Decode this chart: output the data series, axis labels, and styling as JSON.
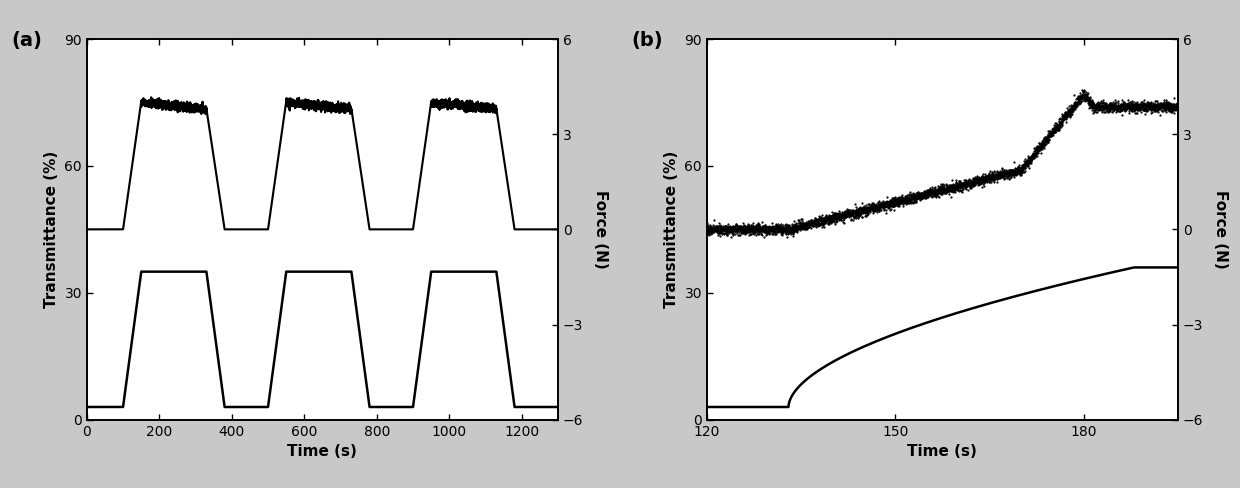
{
  "fig_width": 12.4,
  "fig_height": 4.88,
  "dpi": 100,
  "fig_bg": "#c8c8c8",
  "plot_bg": "#ffffff",
  "panel_a": {
    "label": "(a)",
    "xlabel": "Time (s)",
    "ylabel_left": "Transmittance (%)",
    "ylabel_right": "Force (N)",
    "xlim": [
      0,
      1300
    ],
    "ylim_left": [
      0,
      90
    ],
    "ylim_right": [
      -6,
      6
    ],
    "yticks_left": [
      0,
      30,
      60,
      90
    ],
    "yticks_right": [
      -6,
      -3,
      0,
      3,
      6
    ],
    "xticks": [
      0,
      200,
      400,
      600,
      800,
      1000,
      1200
    ],
    "trans_baseline": 45,
    "trans_high": 75,
    "force_baseline": 3,
    "force_high": 35,
    "cycles": [
      {
        "rise_start": 100,
        "rise_end": 150,
        "high_start": 150,
        "high_end": 330,
        "fall_start": 330,
        "fall_end": 380
      },
      {
        "rise_start": 500,
        "rise_end": 550,
        "high_start": 550,
        "high_end": 730,
        "fall_start": 730,
        "fall_end": 780
      },
      {
        "rise_start": 900,
        "rise_end": 950,
        "high_start": 950,
        "high_end": 1130,
        "fall_start": 1130,
        "fall_end": 1180
      }
    ]
  },
  "panel_b": {
    "label": "(b)",
    "xlabel": "Time (s)",
    "ylabel_left": "Transmittance (%)",
    "ylabel_right": "Force (N)",
    "xlim": [
      120,
      195
    ],
    "ylim_left": [
      0,
      90
    ],
    "ylim_right": [
      -6,
      6
    ],
    "yticks_left": [
      0,
      30,
      60,
      90
    ],
    "yticks_right": [
      -6,
      -3,
      0,
      3,
      6
    ],
    "xticks": [
      120,
      150,
      180
    ]
  },
  "line_color": "#000000",
  "line_width": 1.8,
  "font_size_label": 11,
  "font_size_tick": 10,
  "font_size_panel": 14
}
